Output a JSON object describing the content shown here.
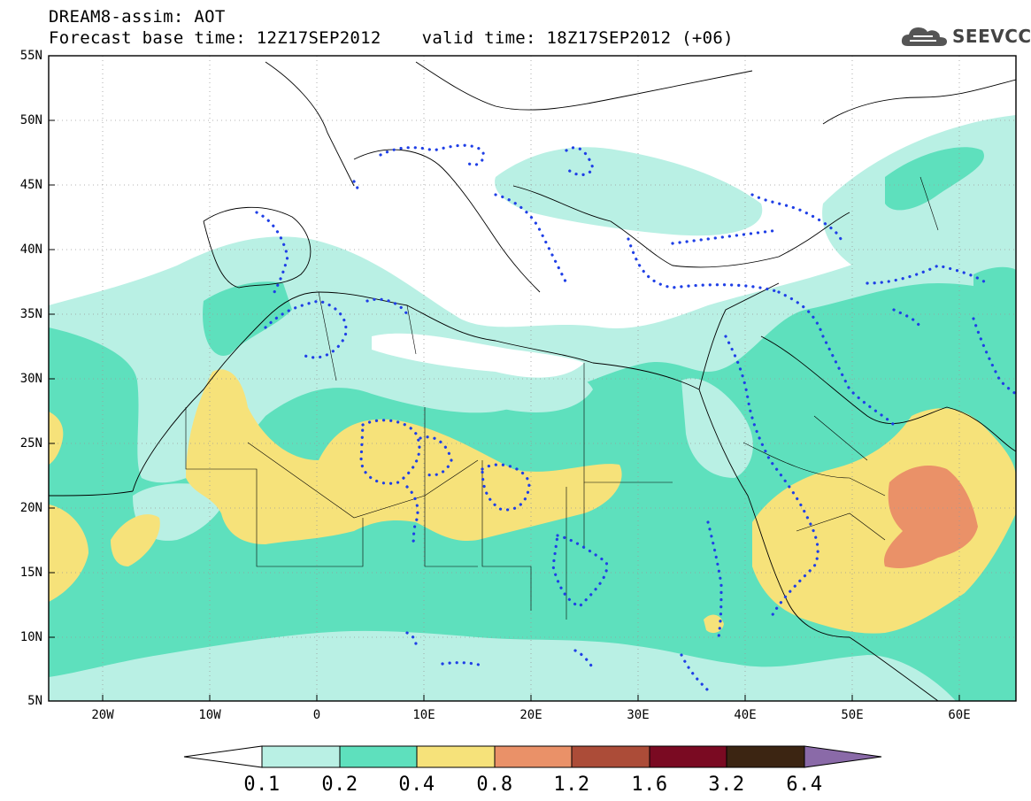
{
  "header": {
    "line1": "DREAM8-assim: AOT",
    "base_time": "Forecast base time: 12Z17SEP2012",
    "valid_time": "valid time: 18Z17SEP2012 (+06)"
  },
  "logo": {
    "text": "SEEVCCC",
    "icon": "cloud-icon"
  },
  "map": {
    "lat_labels": [
      "55N",
      "50N",
      "45N",
      "40N",
      "35N",
      "30N",
      "25N",
      "20N",
      "15N",
      "10N",
      "5N"
    ],
    "lon_labels": [
      "20W",
      "10W",
      "0",
      "10E",
      "20E",
      "30E",
      "40E",
      "50E",
      "60E"
    ],
    "lat_range": [
      5,
      55
    ],
    "lon_range": [
      -25,
      65
    ],
    "grid": true,
    "dotted_contours": "blue dotted lines",
    "dotted_color": "#1f3fe6"
  },
  "colorbar": {
    "labels": [
      "0.1",
      "0.2",
      "0.4",
      "0.8",
      "1.2",
      "1.6",
      "3.2",
      "6.4"
    ],
    "colors": [
      "#b9f0e4",
      "#5ee0bd",
      "#f6e27a",
      "#ea9168",
      "#ac4c38",
      "#7a0a22",
      "#3c2512",
      "#8a6aa8"
    ],
    "lower_arrow_color": "#ffffff",
    "upper_arrow_color": "#8a6aa8"
  },
  "fill_colors": {
    "light": "#b9f0e4",
    "mid": "#5ee0bd",
    "yellow": "#f6e27a",
    "orange": "#ea9168"
  }
}
